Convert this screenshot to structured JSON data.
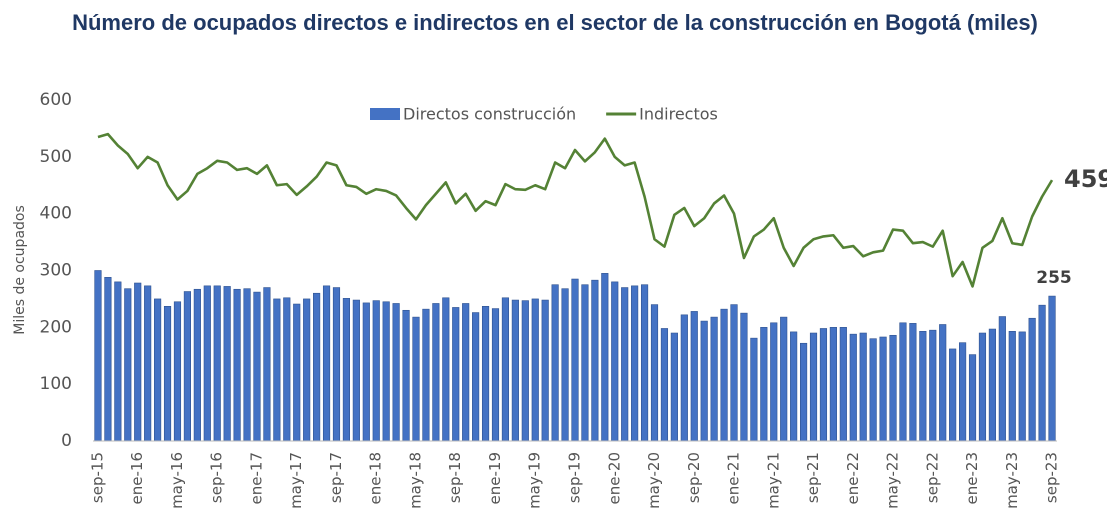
{
  "chart_data": {
    "type": "bar_line",
    "title": "Número de ocupados directos e indirectos en el sector de la construcción en Bogotá (miles)",
    "y_label": "Miles de ocupados",
    "categories": [
      "sep-15",
      null,
      null,
      null,
      "ene-16",
      null,
      null,
      null,
      "may-16",
      null,
      null,
      null,
      "sep-16",
      null,
      null,
      null,
      "ene-17",
      null,
      null,
      null,
      "may-17",
      null,
      null,
      null,
      "sep-17",
      null,
      null,
      null,
      "ene-18",
      null,
      null,
      null,
      "may-18",
      null,
      null,
      null,
      "sep-18",
      null,
      null,
      null,
      "ene-19",
      null,
      null,
      null,
      "may-19",
      null,
      null,
      null,
      "sep-19",
      null,
      null,
      null,
      "ene-20",
      null,
      null,
      null,
      "may-20",
      null,
      null,
      null,
      "sep-20",
      null,
      null,
      null,
      "ene-21",
      null,
      null,
      null,
      "may-21",
      null,
      null,
      null,
      "sep-21",
      null,
      null,
      null,
      "ene-22",
      null,
      null,
      null,
      "may-22",
      null,
      null,
      null,
      "sep-22",
      null,
      null,
      null,
      "ene-23",
      null,
      null,
      null,
      "may-23",
      null,
      null,
      null,
      "sep-23"
    ],
    "series": [
      {
        "name": "Directos construcción",
        "color": "#4472c4",
        "kind": "bar",
        "values": [
          300,
          288,
          280,
          268,
          278,
          273,
          250,
          237,
          245,
          263,
          267,
          273,
          273,
          272,
          267,
          268,
          262,
          270,
          250,
          252,
          241,
          250,
          260,
          273,
          270,
          251,
          248,
          243,
          247,
          245,
          242,
          230,
          218,
          232,
          242,
          252,
          235,
          242,
          226,
          237,
          233,
          252,
          248,
          247,
          250,
          248,
          275,
          268,
          285,
          275,
          283,
          295,
          280,
          270,
          273,
          275,
          240,
          198,
          190,
          222,
          228,
          211,
          218,
          232,
          240,
          225,
          181,
          200,
          208,
          218,
          192,
          172,
          190,
          198,
          200,
          200,
          188,
          190,
          180,
          183,
          186,
          208,
          207,
          193,
          195,
          205,
          162,
          173,
          152,
          190,
          197,
          219,
          193,
          192,
          216,
          239,
          255
        ]
      },
      {
        "name": "Indirectos",
        "color": "#548235",
        "kind": "line",
        "values": [
          535,
          540,
          520,
          505,
          480,
          500,
          490,
          450,
          425,
          440,
          470,
          480,
          493,
          490,
          477,
          480,
          470,
          485,
          450,
          452,
          433,
          448,
          465,
          490,
          485,
          450,
          447,
          435,
          443,
          440,
          432,
          410,
          390,
          415,
          435,
          455,
          418,
          435,
          405,
          422,
          415,
          452,
          443,
          442,
          450,
          443,
          490,
          480,
          512,
          492,
          508,
          532,
          500,
          485,
          490,
          430,
          355,
          342,
          398,
          410,
          378,
          392,
          418,
          432,
          400,
          322,
          360,
          372,
          392,
          340,
          308,
          340,
          355,
          360,
          362,
          340,
          343,
          325,
          332,
          335,
          372,
          370,
          348,
          350,
          342,
          370,
          290,
          315,
          272,
          340,
          352,
          392,
          348,
          345,
          395,
          430,
          459
        ]
      }
    ],
    "ylim": [
      0,
      600
    ],
    "yticks": [
      0,
      100,
      200,
      300,
      400,
      500,
      600
    ],
    "grid": false
  }
}
